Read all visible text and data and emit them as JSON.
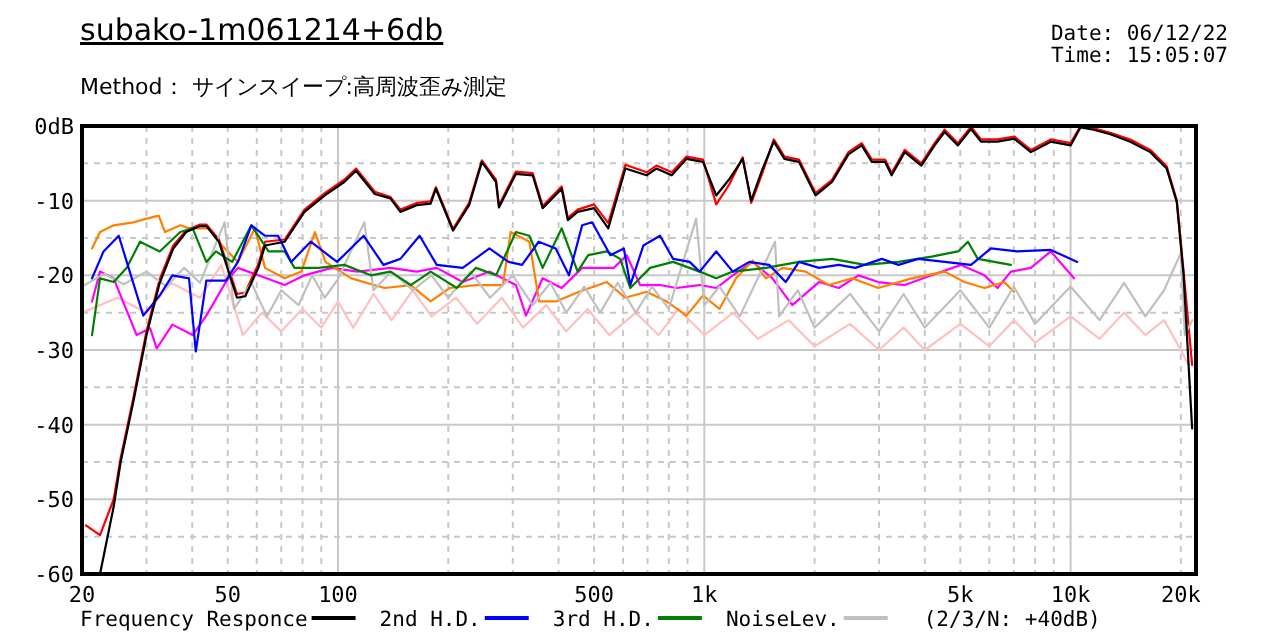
{
  "chart_data": {
    "type": "line",
    "title": "subako-1m061214+6db",
    "subtitle": "Method： サインスイープ:高周波歪み測定",
    "annotations": [
      "Date: 06/12/22",
      "Time: 15:05:07",
      "(2/3/N: +40dB)"
    ],
    "log": "x",
    "grid": true,
    "legend": "bottom",
    "xlim": [
      20,
      22000
    ],
    "xticks": [
      20,
      {
        "value": 30,
        "label": null
      },
      {
        "value": 40,
        "label": null
      },
      50,
      {
        "value": 60,
        "label": null
      },
      {
        "value": 70,
        "label": null
      },
      {
        "value": 80,
        "label": null
      },
      {
        "value": 90,
        "label": null
      },
      100,
      {
        "value": 200,
        "label": null
      },
      {
        "value": 300,
        "label": null
      },
      {
        "value": 400,
        "label": null
      },
      500,
      {
        "value": 600,
        "label": null
      },
      {
        "value": 700,
        "label": null
      },
      {
        "value": 800,
        "label": null
      },
      {
        "value": 900,
        "label": null
      },
      {
        "value": 1000,
        "label": "1k"
      },
      {
        "value": 2000,
        "label": null
      },
      {
        "value": 3000,
        "label": null
      },
      {
        "value": 4000,
        "label": null
      },
      {
        "value": 5000,
        "label": "5k"
      },
      {
        "value": 6000,
        "label": null
      },
      {
        "value": 7000,
        "label": null
      },
      {
        "value": 8000,
        "label": null
      },
      {
        "value": 9000,
        "label": null
      },
      {
        "value": 10000,
        "label": "10k"
      },
      {
        "value": 20000,
        "label": "20k"
      }
    ],
    "ylim": [
      -60,
      0
    ],
    "yticks": [
      {
        "value": 0,
        "label": "0dB"
      },
      {
        "value": -5,
        "label": null
      },
      -10,
      {
        "value": -15,
        "label": null
      },
      -20,
      {
        "value": -25,
        "label": null
      },
      -30,
      {
        "value": -35,
        "label": null
      },
      -40,
      {
        "value": -45,
        "label": null
      },
      -50,
      {
        "value": -55,
        "label": null
      },
      -60
    ],
    "series": [
      {
        "name": "Frequency Responce",
        "color": "#000000",
        "x": [
          22.4,
          24.4,
          25.5,
          27.6,
          30,
          32.6,
          35.5,
          38.5,
          42,
          43.7,
          47.3,
          53,
          55.8,
          60.6,
          63.2,
          71.5,
          81,
          92,
          104,
          112,
          126,
          139,
          148,
          164,
          179,
          185,
          206,
          228,
          247,
          270,
          275,
          306,
          340,
          362,
          408,
          424,
          451,
          500,
          547,
          609,
          696,
          740,
          815,
          894,
          992,
          1078,
          1171,
          1273,
          1343,
          1443,
          1548,
          1655,
          1813,
          2013,
          2232,
          2475,
          2690,
          2866,
          3114,
          3246,
          3526,
          3914,
          4254,
          4531,
          4925,
          5348,
          5693,
          6320,
          7018,
          7790,
          8830,
          10000,
          10640,
          11570,
          12840,
          14560,
          16500,
          18300,
          19500,
          20350,
          21470
        ],
        "values": [
          -60,
          -51,
          -45,
          -37,
          -28,
          -21,
          -16.4,
          -14.2,
          -13.4,
          -13.4,
          -15.5,
          -23,
          -22.8,
          -19,
          -16,
          -15.5,
          -11.5,
          -9.3,
          -7.5,
          -6,
          -9.1,
          -9.7,
          -11.5,
          -10.6,
          -10.4,
          -8.4,
          -14,
          -10.6,
          -4.8,
          -7.5,
          -10.9,
          -6.4,
          -6.6,
          -11,
          -8.4,
          -12.6,
          -11.5,
          -11,
          -13.7,
          -5.7,
          -6.6,
          -5.7,
          -6.6,
          -4.4,
          -4.8,
          -9.3,
          -7.1,
          -4.4,
          -10,
          -5.7,
          -2.1,
          -4.4,
          -4.8,
          -9.3,
          -7.5,
          -3.8,
          -2.6,
          -4.8,
          -4.8,
          -6.6,
          -3.5,
          -5.3,
          -2.6,
          -0.8,
          -2.6,
          -0.4,
          -2.1,
          -2.1,
          -1.7,
          -3.5,
          -2.1,
          -2.6,
          -0.2,
          -0.5,
          -1.1,
          -2.1,
          -3.5,
          -5.7,
          -10.2,
          -20,
          -40.5
        ]
      },
      {
        "name": "2nd H.D.",
        "color": "#0000ff",
        "x": [
          21.3,
          22.9,
          25.2,
          29.4,
          32.6,
          35.3,
          39.2,
          40.9,
          43.7,
          49.4,
          53.3,
          58,
          63.2,
          68.6,
          74.5,
          84.2,
          99.4,
          117.5,
          133,
          148,
          167,
          186,
          219,
          259,
          292,
          318,
          353,
          393,
          427,
          464,
          494,
          554,
          603,
          628,
          682,
          757,
          822,
          912,
          971,
          1078,
          1196,
          1327,
          1504,
          1668,
          1813,
          2056,
          2328,
          2585,
          3053,
          3389,
          3836,
          4531,
          5348,
          6060,
          7148,
          8830,
          10430
        ],
        "values": [
          -20.4,
          -16.8,
          -14.7,
          -25.4,
          -22.7,
          -20,
          -20.4,
          -30.2,
          -20.7,
          -20.7,
          -18.2,
          -13.3,
          -14.7,
          -14.7,
          -18.2,
          -15.5,
          -18.2,
          -14.7,
          -18.6,
          -17.8,
          -14.7,
          -18.6,
          -19,
          -16.4,
          -18.2,
          -18.6,
          -15.5,
          -16.4,
          -20,
          -13.3,
          -12.9,
          -17.3,
          -16.4,
          -21.3,
          -16,
          -14.7,
          -17.8,
          -18.2,
          -19.5,
          -16.8,
          -19.5,
          -18.2,
          -18.6,
          -20.9,
          -18.2,
          -19,
          -18.6,
          -19,
          -17.8,
          -18.6,
          -17.8,
          -18.2,
          -18.6,
          -16.4,
          -16.8,
          -16.6,
          -18.2
        ]
      },
      {
        "name": "3rd H.D.",
        "color": "#008000",
        "x": [
          21.3,
          22.4,
          24.4,
          26.5,
          28.8,
          32.6,
          37.1,
          40.1,
          43.7,
          46.4,
          51.4,
          58,
          64.6,
          71.5,
          76.1,
          88.5,
          104,
          123,
          139,
          158,
          179,
          211,
          238,
          270,
          306,
          333,
          362,
          408,
          451,
          482,
          542,
          589,
          628,
          711,
          822,
          971,
          1078,
          1196,
          1473,
          1813,
          2232,
          2749,
          3389,
          4172,
          4931,
          5247,
          5580,
          6870
        ],
        "values": [
          -28,
          -20.4,
          -20.9,
          -19,
          -15.5,
          -16.8,
          -14.2,
          -13.7,
          -18.2,
          -16.8,
          -18.2,
          -13.3,
          -16.8,
          -16.8,
          -19,
          -19,
          -18.6,
          -20,
          -19.5,
          -21.3,
          -19.5,
          -21.7,
          -19,
          -20,
          -14.2,
          -14.7,
          -19,
          -13.7,
          -19.5,
          -17.3,
          -16.8,
          -17.8,
          -21.7,
          -19,
          -18.2,
          -19.5,
          -20.4,
          -19.5,
          -19,
          -18.2,
          -17.8,
          -18.6,
          -18.2,
          -17.5,
          -16.8,
          -15.5,
          -17.8,
          -18.6
        ]
      },
      {
        "name": "NoiseLev.",
        "color": "#c0c0c0",
        "x": [
          20,
          23,
          26,
          30,
          34,
          38,
          42,
          49,
          52,
          58,
          64,
          70,
          78,
          85,
          92,
          100,
          118,
          125,
          140,
          160,
          180,
          200,
          230,
          260,
          300,
          340,
          380,
          420,
          470,
          520,
          580,
          650,
          720,
          800,
          950,
          1000,
          1100,
          1250,
          1560,
          1600,
          1800,
          2000,
          2500,
          3000,
          3500,
          4000,
          5000,
          6000,
          7000,
          8000,
          10000,
          12000,
          14000,
          16000,
          18000,
          20000,
          20500,
          21500
        ],
        "values": [
          -21.5,
          -19.8,
          -21.2,
          -19.5,
          -21.5,
          -19,
          -21,
          -12.9,
          -24.5,
          -21,
          -25.5,
          -22,
          -24,
          -20,
          -23,
          -20.5,
          -12.9,
          -22,
          -19.5,
          -22,
          -20,
          -23,
          -19.5,
          -23,
          -20,
          -24,
          -21,
          -25,
          -21.5,
          -25,
          -21,
          -25,
          -21.5,
          -24.5,
          -12.4,
          -24,
          -21.5,
          -25.5,
          -15.5,
          -25.5,
          -22,
          -27,
          -22.5,
          -27.5,
          -22.5,
          -27,
          -22,
          -27,
          -21.5,
          -26.5,
          -21.5,
          -26,
          -21,
          -25.5,
          -22,
          -17,
          -28,
          -26
        ]
      },
      {
        "color": "#ff0000",
        "x": [
          20.5,
          22.4,
          24.4,
          25.5,
          27.6,
          30,
          32.6,
          35.5,
          38.5,
          42,
          43.7,
          47.3,
          53,
          55.8,
          60.6,
          63.2,
          71.5,
          81,
          92,
          104,
          112,
          126,
          139,
          148,
          164,
          179,
          185,
          206,
          228,
          247,
          270,
          275,
          306,
          340,
          362,
          408,
          424,
          451,
          500,
          547,
          609,
          696,
          740,
          815,
          894,
          992,
          1078,
          1171,
          1273,
          1343,
          1443,
          1548,
          1655,
          1813,
          2013,
          2232,
          2475,
          2690,
          2866,
          3114,
          3246,
          3526,
          3914,
          4254,
          4531,
          4925,
          5348,
          5693,
          6320,
          7018,
          7790,
          8830,
          10000,
          10640,
          11570,
          12840,
          14560,
          16500,
          18300,
          19500,
          20350,
          21470
        ],
        "values": [
          -53.5,
          -54.8,
          -50,
          -44.5,
          -36.5,
          -27.5,
          -20.5,
          -16,
          -14,
          -13.2,
          -13.2,
          -15.2,
          -22.5,
          -22.3,
          -18.5,
          -15.5,
          -15.2,
          -11.2,
          -9,
          -7.2,
          -5.7,
          -8.8,
          -9.5,
          -11.2,
          -10.3,
          -10.1,
          -8.2,
          -13.8,
          -10.3,
          -4.6,
          -7.2,
          -10.6,
          -6.1,
          -6.3,
          -10.7,
          -8.1,
          -12.3,
          -11.2,
          -10.5,
          -13,
          -5.2,
          -6.2,
          -5.3,
          -6.2,
          -4.1,
          -4.5,
          -10.5,
          -7.8,
          -4.2,
          -10.3,
          -6.2,
          -1.8,
          -4.1,
          -4.5,
          -9,
          -7.2,
          -3.5,
          -2.3,
          -4.5,
          -4.5,
          -6.3,
          -3.2,
          -5,
          -2.3,
          -0.5,
          -2.3,
          -0.1,
          -1.8,
          -1.8,
          -1.4,
          -3.2,
          -1.8,
          -2.3,
          0,
          -0.3,
          -0.9,
          -1.8,
          -3.2,
          -5.4,
          -10,
          -19.5,
          -32
        ]
      },
      {
        "color": "#ff8000",
        "x": [
          21.3,
          22.4,
          24.4,
          27.6,
          30,
          32.4,
          33.7,
          37.1,
          39.2,
          44.3,
          48.2,
          53.3,
          59.3,
          63.2,
          71.5,
          79.4,
          86.5,
          92.4,
          108.7,
          134,
          158,
          179,
          202,
          238,
          282,
          296,
          333,
          354,
          394,
          455,
          542,
          609,
          696,
          789,
          894,
          992,
          1100,
          1221,
          1355,
          1473,
          1634,
          1891,
          2187,
          2530,
          2987,
          3680,
          4534,
          5128,
          5821,
          6585,
          7004
        ],
        "values": [
          -16.4,
          -14.2,
          -13.3,
          -12.9,
          -12.4,
          -12,
          -14.2,
          -13.3,
          -13.7,
          -13.7,
          -16,
          -18.2,
          -13.7,
          -19,
          -20.4,
          -19.5,
          -14.2,
          -18.2,
          -20.4,
          -21.7,
          -21.3,
          -23.5,
          -21.7,
          -21.3,
          -21.3,
          -14.2,
          -15.5,
          -23.5,
          -23.5,
          -22.2,
          -20.9,
          -23,
          -22.2,
          -23.5,
          -25.4,
          -22.7,
          -24.5,
          -20.4,
          -18,
          -20.4,
          -19,
          -19.5,
          -21.3,
          -20.4,
          -21.7,
          -20.4,
          -19.5,
          -20.9,
          -21.7,
          -20.9,
          -22.2
        ]
      },
      {
        "color": "#ff00ff",
        "x": [
          21.3,
          22.4,
          24.4,
          28.2,
          30.7,
          32,
          35.3,
          40.1,
          43.7,
          49.4,
          53.3,
          60.6,
          71.5,
          81,
          96.1,
          113,
          139,
          164,
          186,
          219,
          259,
          306,
          326,
          362,
          408,
          464,
          566,
          614,
          668,
          757,
          839,
          971,
          1078,
          1196,
          1355,
          1535,
          1739,
          2056,
          2328,
          2636,
          2987,
          3526,
          4172,
          5026,
          5821,
          6320,
          6870,
          7790,
          8830,
          10220
        ],
        "values": [
          -23.5,
          -19.5,
          -20.4,
          -28,
          -27.1,
          -29.8,
          -26.6,
          -28,
          -25.4,
          -20.9,
          -19,
          -20,
          -21.3,
          -20,
          -19,
          -19.5,
          -19,
          -19.5,
          -19,
          -20.9,
          -19.5,
          -21.3,
          -25.4,
          -20.4,
          -21.7,
          -19,
          -19,
          -17.3,
          -21.3,
          -21.3,
          -21.7,
          -21.3,
          -21.7,
          -20,
          -18.2,
          -20.4,
          -24,
          -20.9,
          -21.7,
          -20,
          -20.9,
          -21.3,
          -20,
          -18.6,
          -20,
          -21.7,
          -19.5,
          -19,
          -16.8,
          -20.4
        ]
      },
      {
        "color": "#ffc0c0",
        "x": [
          20,
          25,
          30,
          35,
          42,
          48,
          55,
          62,
          70,
          80,
          90,
          100,
          110,
          125,
          140,
          160,
          180,
          210,
          240,
          280,
          320,
          370,
          420,
          480,
          550,
          650,
          750,
          850,
          1000,
          1200,
          1400,
          1700,
          2000,
          2500,
          3000,
          3500,
          4000,
          5000,
          6000,
          7000,
          8000,
          10000,
          12000,
          14000,
          16000,
          18000,
          20000,
          21000
        ],
        "values": [
          -25,
          -23,
          -25,
          -21,
          -23,
          -18.6,
          -28,
          -25,
          -27.5,
          -24.5,
          -27,
          -23.5,
          -27,
          -22.5,
          -26,
          -22,
          -25.5,
          -23,
          -26.5,
          -23,
          -27,
          -24,
          -27.5,
          -24.5,
          -28,
          -25,
          -28,
          -24.5,
          -28,
          -25,
          -28.5,
          -26,
          -29.5,
          -26.5,
          -30,
          -27,
          -30,
          -26.5,
          -29.5,
          -26,
          -29,
          -25.5,
          -28.5,
          -25,
          -28,
          -26,
          -30,
          -32
        ]
      }
    ]
  }
}
